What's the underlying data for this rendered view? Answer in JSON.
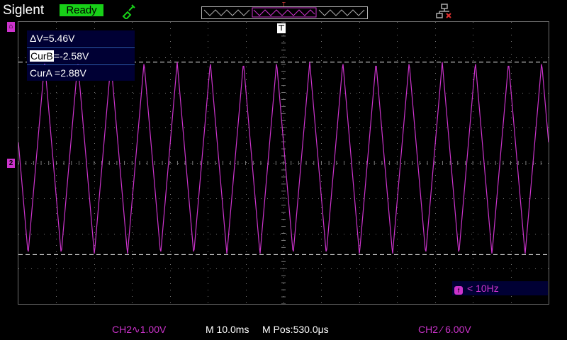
{
  "topbar": {
    "brand": "Siglent",
    "status": "Ready",
    "trigger_marker_label": "T"
  },
  "icons": {
    "probe": "probe-icon",
    "network": "network-icon",
    "channel_top": "channel-marker-icon",
    "trigger": "trigger-position-icon"
  },
  "cursors": {
    "delta": "ΔV=5.46V",
    "cur_b_label": "CurB",
    "cur_b_value": "=-2.58V",
    "cur_a": "CurA =2.88V"
  },
  "channel_marker": "2",
  "waveform": {
    "channel": "CH2",
    "shape": "triangle",
    "period_ms": 10.0,
    "volts_per_div": 1.0,
    "cursor_a_v": 2.88,
    "cursor_b_v": -2.58,
    "peak_v": 2.88,
    "trough_v": -2.58
  },
  "frequency": {
    "icon_label": "f",
    "text": "< 10Hz"
  },
  "bottom": {
    "ch2_scale": "CH2∿1.00V",
    "h_scale": "M 10.0ms",
    "h_pos": "M Pos:530.0μs",
    "trigger_info": "CH2 ∕ 6.00V"
  },
  "colors": {
    "ch2": "#cc33cc",
    "status_bg": "#18d018",
    "panel_bg": "#000034"
  }
}
